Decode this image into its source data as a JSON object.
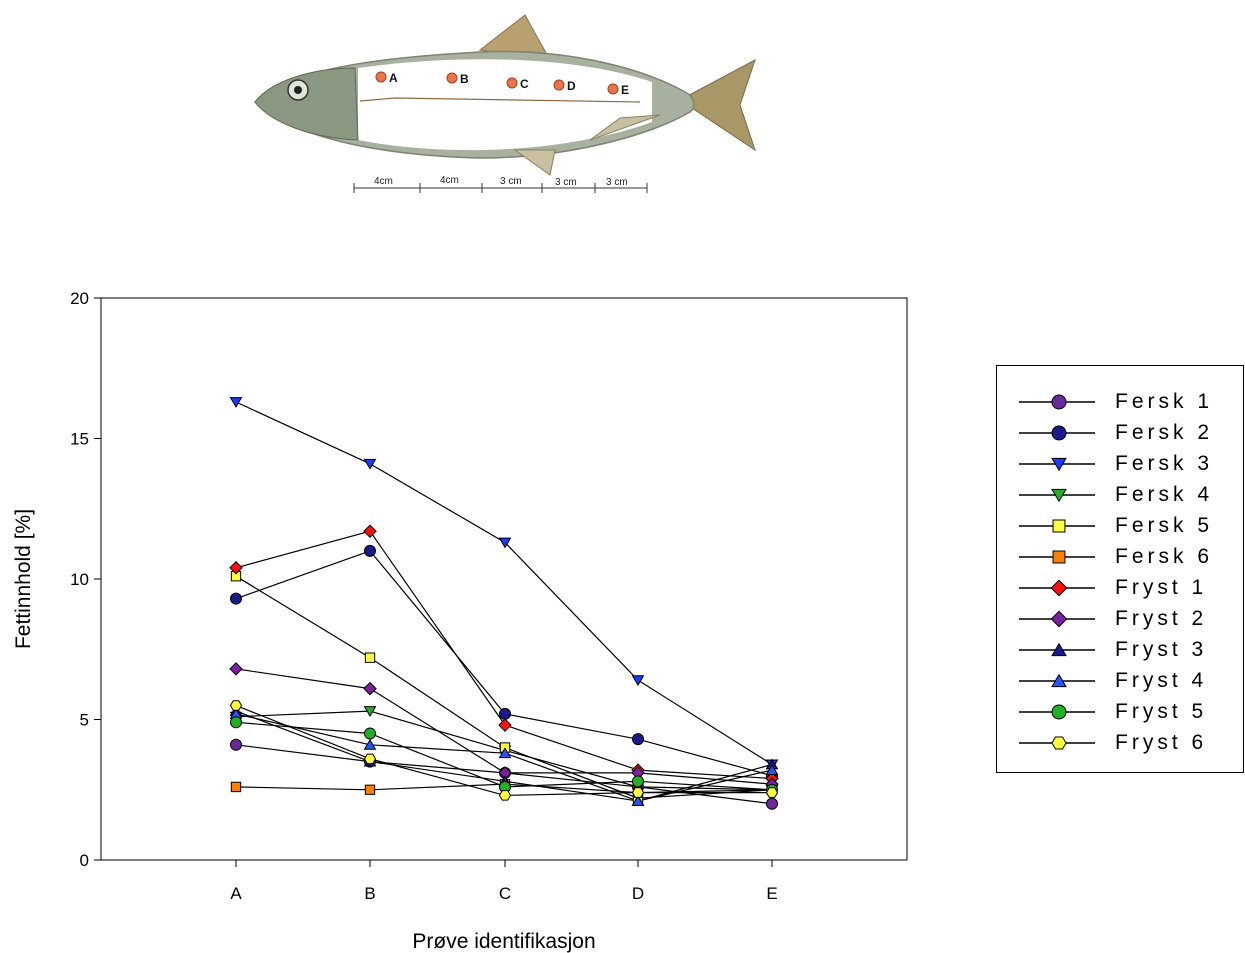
{
  "fish": {
    "points": [
      "A",
      "B",
      "C",
      "D",
      "E"
    ],
    "scale": [
      "4cm",
      "4cm",
      "3 cm",
      "3 cm",
      "3 cm"
    ]
  },
  "chart_data": {
    "type": "line",
    "xlabel": "Prøve identifikasjon",
    "ylabel": "Fettinnhold [%]",
    "categories": [
      "A",
      "B",
      "C",
      "D",
      "E"
    ],
    "ylim": [
      0,
      20
    ],
    "yticks": [
      0,
      5,
      10,
      15,
      20
    ],
    "legend_position": "right",
    "series": [
      {
        "name": "Fersk 1",
        "marker": "circle",
        "color": "#6a2a9a",
        "values": [
          4.1,
          3.5,
          3.1,
          2.6,
          2.0
        ]
      },
      {
        "name": "Fersk 2",
        "marker": "circle",
        "color": "#1a1a8a",
        "values": [
          9.3,
          11.0,
          5.2,
          4.3,
          3.0
        ]
      },
      {
        "name": "Fersk 3",
        "marker": "triangle-down",
        "color": "#1a3aff",
        "values": [
          16.3,
          14.1,
          11.3,
          6.4,
          3.4
        ]
      },
      {
        "name": "Fersk 4",
        "marker": "triangle-down",
        "color": "#22b022",
        "values": [
          5.1,
          5.3,
          3.9,
          2.6,
          2.5
        ]
      },
      {
        "name": "Fersk 5",
        "marker": "square",
        "color": "#ffff40",
        "values": [
          10.1,
          7.2,
          4.0,
          2.2,
          2.5
        ]
      },
      {
        "name": "Fersk 6",
        "marker": "square",
        "color": "#ff7f00",
        "values": [
          2.6,
          2.5,
          2.7,
          2.4,
          2.5
        ]
      },
      {
        "name": "Fryst 1",
        "marker": "diamond",
        "color": "#ff1010",
        "values": [
          10.4,
          11.7,
          4.8,
          3.2,
          2.9
        ]
      },
      {
        "name": "Fryst 2",
        "marker": "diamond",
        "color": "#7a20a0",
        "values": [
          6.8,
          6.1,
          3.1,
          3.1,
          2.7
        ]
      },
      {
        "name": "Fryst 3",
        "marker": "triangle-up",
        "color": "#1a1a8a",
        "values": [
          5.3,
          3.5,
          2.8,
          2.1,
          3.4
        ]
      },
      {
        "name": "Fryst 4",
        "marker": "triangle-up",
        "color": "#2255ff",
        "values": [
          5.2,
          4.1,
          3.8,
          2.1,
          3.2
        ]
      },
      {
        "name": "Fryst 5",
        "marker": "circle",
        "color": "#22b022",
        "values": [
          4.9,
          4.5,
          2.6,
          2.8,
          2.5
        ]
      },
      {
        "name": "Fryst 6",
        "marker": "hexagon",
        "color": "#ffff40",
        "values": [
          5.5,
          3.6,
          2.3,
          2.4,
          2.4
        ]
      }
    ]
  }
}
